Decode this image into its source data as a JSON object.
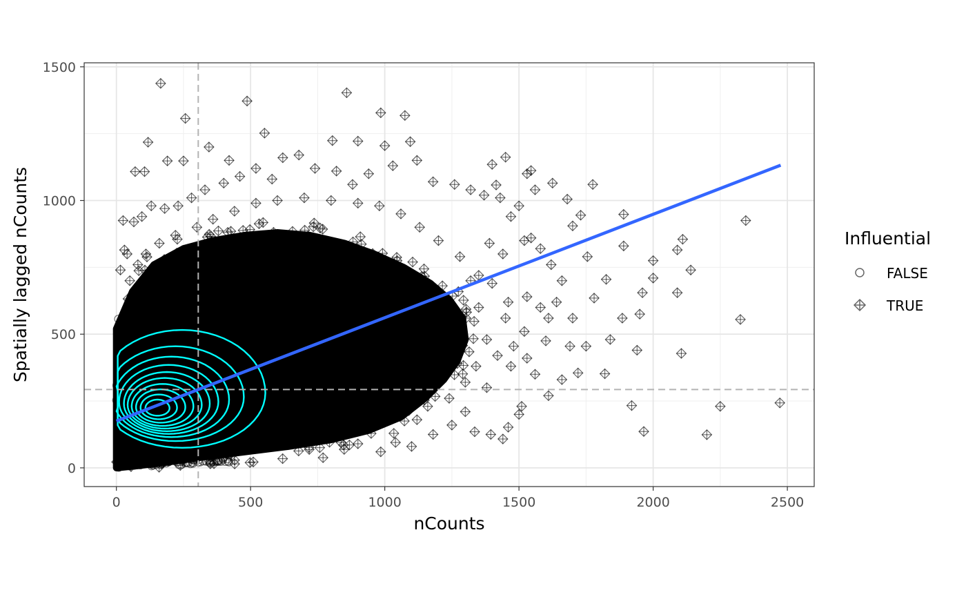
{
  "chart_data": {
    "type": "scatter",
    "xlabel": "nCounts",
    "ylabel": "Spatially lagged nCounts",
    "xlim": [
      -120,
      2600
    ],
    "ylim": [
      -70,
      1515
    ],
    "x_ticks": [
      0,
      500,
      1000,
      1500,
      2000,
      2500
    ],
    "x_tick_labels": [
      "0",
      "500",
      "1000",
      "1500",
      "2000",
      "2500"
    ],
    "y_ticks": [
      0,
      500,
      1000,
      1500
    ],
    "y_tick_labels": [
      "0",
      "500",
      "1000",
      "1500"
    ],
    "grid": true,
    "legend": {
      "title": "Influential",
      "position": "right",
      "entries": [
        {
          "label": "FALSE",
          "shape": "open-circle"
        },
        {
          "label": "TRUE",
          "shape": "diamond-plus"
        }
      ]
    },
    "reference_lines": {
      "vertical_x": 305,
      "horizontal_y": 293
    },
    "regression_line": {
      "color": "#3366FF",
      "from": [
        0,
        175
      ],
      "to": [
        2475,
        1132
      ]
    },
    "density_contour_color": "#00FFFF",
    "point_color": "#000000",
    "dense_region_polygon": [
      [
        0,
        0
      ],
      [
        0,
        520
      ],
      [
        60,
        660
      ],
      [
        140,
        760
      ],
      [
        250,
        820
      ],
      [
        360,
        850
      ],
      [
        480,
        870
      ],
      [
        600,
        880
      ],
      [
        720,
        870
      ],
      [
        850,
        840
      ],
      [
        960,
        800
      ],
      [
        1070,
        750
      ],
      [
        1170,
        690
      ],
      [
        1240,
        630
      ],
      [
        1290,
        560
      ],
      [
        1300,
        480
      ],
      [
        1270,
        400
      ],
      [
        1220,
        330
      ],
      [
        1150,
        260
      ],
      [
        1060,
        190
      ],
      [
        940,
        140
      ],
      [
        800,
        105
      ],
      [
        640,
        80
      ],
      [
        480,
        60
      ],
      [
        320,
        40
      ],
      [
        180,
        20
      ],
      [
        80,
        8
      ]
    ],
    "outliers_true": [
      [
        165,
        1438
      ],
      [
        487,
        1372
      ],
      [
        858,
        1403
      ],
      [
        257,
        1307
      ],
      [
        985,
        1328
      ],
      [
        1075,
        1318
      ],
      [
        552,
        1252
      ],
      [
        345,
        1200
      ],
      [
        805,
        1224
      ],
      [
        900,
        1222
      ],
      [
        1000,
        1205
      ],
      [
        1095,
        1220
      ],
      [
        118,
        1218
      ],
      [
        190,
        1148
      ],
      [
        250,
        1148
      ],
      [
        70,
        1108
      ],
      [
        105,
        1108
      ],
      [
        420,
        1150
      ],
      [
        1400,
        1135
      ],
      [
        1450,
        1162
      ],
      [
        1530,
        1100
      ],
      [
        1545,
        1112
      ],
      [
        1625,
        1065
      ],
      [
        1775,
        1060
      ],
      [
        1415,
        1058
      ],
      [
        1560,
        1040
      ],
      [
        1680,
        1005
      ],
      [
        1730,
        945
      ],
      [
        1890,
        948
      ],
      [
        1500,
        980
      ],
      [
        1545,
        860
      ],
      [
        1700,
        905
      ],
      [
        1755,
        790
      ],
      [
        1890,
        830
      ],
      [
        2000,
        775
      ],
      [
        2090,
        815
      ],
      [
        2110,
        855
      ],
      [
        2140,
        740
      ],
      [
        1960,
        655
      ],
      [
        2000,
        710
      ],
      [
        2090,
        655
      ],
      [
        1825,
        705
      ],
      [
        1780,
        635
      ],
      [
        1840,
        480
      ],
      [
        1885,
        560
      ],
      [
        1950,
        575
      ],
      [
        1940,
        440
      ],
      [
        2105,
        428
      ],
      [
        2325,
        555
      ],
      [
        2345,
        925
      ],
      [
        1920,
        233
      ],
      [
        1965,
        136
      ],
      [
        2200,
        124
      ],
      [
        2250,
        230
      ],
      [
        2472,
        243
      ],
      [
        1820,
        352
      ],
      [
        1720,
        355
      ],
      [
        1610,
        270
      ],
      [
        1500,
        200
      ],
      [
        1460,
        152
      ],
      [
        1440,
        108
      ],
      [
        1395,
        125
      ],
      [
        1335,
        135
      ],
      [
        1510,
        230
      ],
      [
        1560,
        350
      ],
      [
        1660,
        330
      ],
      [
        1690,
        455
      ],
      [
        1750,
        455
      ],
      [
        1600,
        475
      ],
      [
        1700,
        560
      ],
      [
        1580,
        600
      ],
      [
        1640,
        620
      ],
      [
        1480,
        455
      ],
      [
        1520,
        510
      ],
      [
        1380,
        300
      ],
      [
        1300,
        210
      ],
      [
        1250,
        160
      ],
      [
        1180,
        125
      ],
      [
        1100,
        80
      ],
      [
        985,
        60
      ],
      [
        770,
        38
      ],
      [
        510,
        22
      ],
      [
        350,
        15
      ],
      [
        1040,
        95
      ],
      [
        900,
        90
      ],
      [
        65,
        920
      ],
      [
        25,
        925
      ],
      [
        30,
        815
      ],
      [
        15,
        740
      ],
      [
        40,
        800
      ],
      [
        95,
        940
      ],
      [
        130,
        980
      ],
      [
        180,
        970
      ],
      [
        230,
        980
      ],
      [
        280,
        1010
      ],
      [
        330,
        1040
      ],
      [
        400,
        1065
      ],
      [
        460,
        1090
      ],
      [
        520,
        1120
      ],
      [
        580,
        1080
      ],
      [
        620,
        1160
      ],
      [
        680,
        1170
      ],
      [
        740,
        1120
      ],
      [
        820,
        1110
      ],
      [
        880,
        1060
      ],
      [
        940,
        1100
      ],
      [
        1030,
        1130
      ],
      [
        1120,
        1150
      ],
      [
        1180,
        1070
      ],
      [
        1260,
        1060
      ],
      [
        1320,
        1040
      ],
      [
        1370,
        1020
      ],
      [
        1430,
        1010
      ],
      [
        1470,
        940
      ],
      [
        1520,
        850
      ],
      [
        1580,
        820
      ],
      [
        1620,
        760
      ],
      [
        1660,
        700
      ],
      [
        1390,
        840
      ],
      [
        1440,
        800
      ],
      [
        1350,
        720
      ],
      [
        1400,
        690
      ],
      [
        1460,
        620
      ],
      [
        1530,
        640
      ],
      [
        1610,
        560
      ],
      [
        1450,
        560
      ],
      [
        1420,
        420
      ],
      [
        1470,
        380
      ],
      [
        1530,
        410
      ],
      [
        1380,
        480
      ],
      [
        1340,
        380
      ],
      [
        1300,
        320
      ],
      [
        1240,
        260
      ],
      [
        1160,
        230
      ],
      [
        1120,
        180
      ],
      [
        1350,
        600
      ],
      [
        1320,
        700
      ],
      [
        1280,
        790
      ],
      [
        1200,
        850
      ],
      [
        1130,
        900
      ],
      [
        1060,
        950
      ],
      [
        980,
        980
      ],
      [
        900,
        990
      ],
      [
        800,
        1000
      ],
      [
        700,
        1010
      ],
      [
        600,
        1000
      ],
      [
        520,
        990
      ],
      [
        440,
        960
      ],
      [
        360,
        930
      ],
      [
        300,
        900
      ],
      [
        220,
        870
      ],
      [
        160,
        840
      ],
      [
        110,
        800
      ],
      [
        80,
        760
      ],
      [
        50,
        700
      ]
    ]
  }
}
